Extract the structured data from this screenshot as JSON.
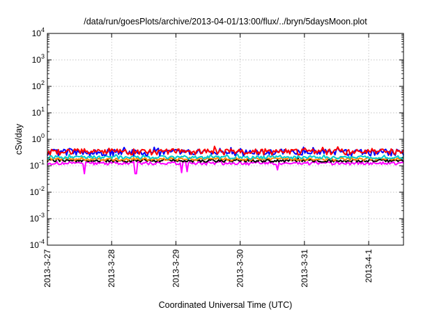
{
  "chart_data": {
    "type": "line",
    "title": "/data/run/goesPlots/archive/2013-04-01/13:00/flux/../bryn/5daysMoon.plot",
    "xlabel": "Coordinated Universal Time (UTC)",
    "ylabel": "cSv/day",
    "y_scale": "log",
    "ylim_exponents": [
      -4,
      4
    ],
    "y_tick_base": "10",
    "y_tick_exponents": [
      "-4",
      "-3",
      "-2",
      "-1",
      "0",
      "1",
      "2",
      "3",
      "4"
    ],
    "xlim": [
      "2013-03-27 00:00",
      "2013-04-01 13:00"
    ],
    "x_ticks": [
      {
        "label": "2013-3-27",
        "time": "2013-03-27 00:00"
      },
      {
        "label": "2013-3-28",
        "time": "2013-03-28 00:00"
      },
      {
        "label": "2013-3-29",
        "time": "2013-03-29 00:00"
      },
      {
        "label": "2013-3-30",
        "time": "2013-03-30 00:00"
      },
      {
        "label": "2013-3-31",
        "time": "2013-03-31 00:00"
      },
      {
        "label": "2013-4-1",
        "time": "2013-04-01 00:00"
      }
    ],
    "grid": true,
    "series": [
      {
        "color": "#ff00ff",
        "base": 0.12,
        "amp": 0.03,
        "dips": [
          [
            "2013-03-27 14:00",
            0.05
          ],
          [
            "2013-03-28 09:00",
            0.05
          ],
          [
            "2013-03-29 02:00",
            0.055
          ],
          [
            "2013-03-29 04:00",
            0.06
          ],
          [
            "2013-03-30 14:00",
            0.07
          ]
        ]
      },
      {
        "color": "#000000",
        "base": 0.15,
        "amp": 0.03
      },
      {
        "color": "#ff8c00",
        "base": 0.17,
        "amp": 0.035
      },
      {
        "color": "#00cccc",
        "base": 0.2,
        "amp": 0.05
      },
      {
        "color": "#0000ff",
        "base": 0.3,
        "amp": 0.15
      },
      {
        "color": "#ff0000",
        "base": 0.32,
        "amp": 0.15
      }
    ]
  }
}
